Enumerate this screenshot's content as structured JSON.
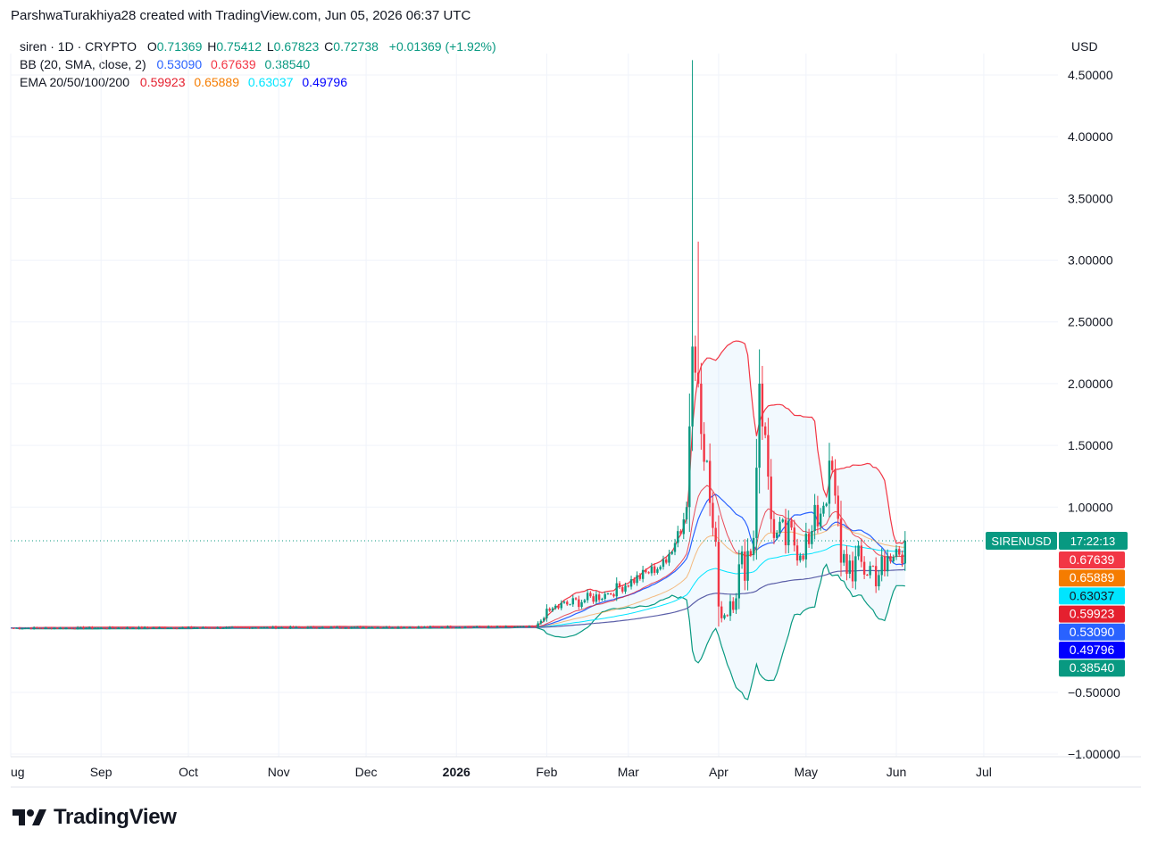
{
  "credit": "ParshwaTurakhiya28 created with TradingView.com, Jun 05, 2026 06:37 UTC",
  "legend": {
    "symbol": "siren · 1D · CRYPTO",
    "o_label": "O",
    "o": "0.71369",
    "h_label": "H",
    "h": "0.75412",
    "l_label": "L",
    "l": "0.67823",
    "c_label": "C",
    "c": "0.72738",
    "change": "+0.01369 (+1.92%)",
    "bb_label": "BB (20, SMA, close, 2)",
    "bb_basis": "0.53090",
    "bb_upper": "0.67639",
    "bb_lower": "0.38540",
    "ema_label": "EMA 20/50/100/200",
    "ema20": "0.59923",
    "ema50": "0.65889",
    "ema100": "0.63037",
    "ema200": "0.49796"
  },
  "colors": {
    "up": "#089981",
    "down": "#f23645",
    "bb_basis": "#2962ff",
    "bb_upper": "#f23645",
    "bb_lower": "#089981",
    "ema20": "#e5202f",
    "ema50": "#f57c00",
    "ema100": "#00e5ff",
    "ema200": "#0000ff"
  },
  "brand": "TradingView",
  "chart_data": {
    "type": "candlestick",
    "currency_label": "USD",
    "y_ticks": [
      "4.50000",
      "4.00000",
      "3.50000",
      "3.00000",
      "2.50000",
      "2.00000",
      "1.50000",
      "1.00000",
      "−0.50000",
      "−1.00000"
    ],
    "y_tick_values": [
      4.5,
      4.0,
      3.5,
      3.0,
      2.5,
      2.0,
      1.5,
      1.0,
      -0.5,
      -1.0
    ],
    "ylim": [
      -1.0,
      4.65
    ],
    "x_ticks": [
      "ug",
      "Sep",
      "Oct",
      "Nov",
      "Dec",
      "2026",
      "Feb",
      "Mar",
      "Apr",
      "May",
      "Jun",
      "Jul"
    ],
    "x_tick_days": [
      0,
      31,
      61,
      92,
      122,
      153,
      184,
      212,
      243,
      273,
      304,
      334
    ],
    "x_range_days": [
      0,
      362
    ],
    "last_price_tag": {
      "symbol": "SIRENUSD",
      "countdown": "17:22:13",
      "value": 0.72738
    },
    "price_tags": [
      {
        "label": "0.67639",
        "value": 0.67639,
        "color": "#f23645"
      },
      {
        "label": "0.65889",
        "value": 0.65889,
        "color": "#f57c00"
      },
      {
        "label": "0.63037",
        "value": 0.63037,
        "color": "#00e5ff"
      },
      {
        "label": "0.59923",
        "value": 0.59923,
        "color": "#e5202f"
      },
      {
        "label": "0.53090",
        "value": 0.5309,
        "color": "#2962ff"
      },
      {
        "label": "0.49796",
        "value": 0.49796,
        "color": "#0000ff"
      },
      {
        "label": "0.38540",
        "value": 0.3854,
        "color": "#089981"
      }
    ],
    "key_points": [
      {
        "day": 0,
        "close": 0.02
      },
      {
        "day": 180,
        "close": 0.03
      },
      {
        "day": 186,
        "close": 0.18
      },
      {
        "day": 205,
        "close": 0.3
      },
      {
        "day": 225,
        "close": 0.55
      },
      {
        "day": 232,
        "close": 1.0
      },
      {
        "day": 234,
        "close": 2.3,
        "high": 4.62
      },
      {
        "day": 236,
        "close": 2.0,
        "high": 3.15
      },
      {
        "day": 244,
        "close": 0.1
      },
      {
        "day": 255,
        "close": 0.75
      },
      {
        "day": 257,
        "close": 2.0
      },
      {
        "day": 262,
        "close": 0.75
      },
      {
        "day": 274,
        "close": 0.7
      },
      {
        "day": 282,
        "close": 1.3
      },
      {
        "day": 285,
        "close": 0.55
      },
      {
        "day": 300,
        "close": 0.48
      },
      {
        "day": 307,
        "close": 0.72738
      }
    ]
  }
}
